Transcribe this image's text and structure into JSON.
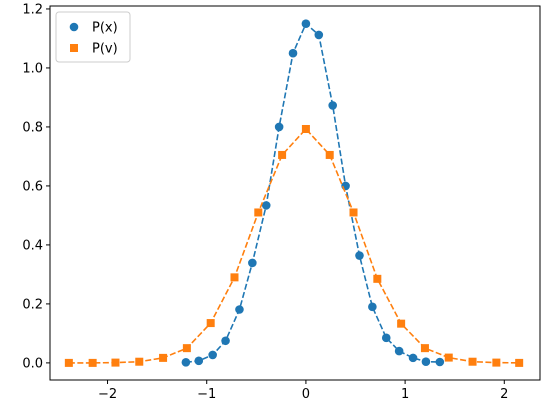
{
  "chart_data": {
    "type": "line",
    "title": "",
    "xlabel": "",
    "ylabel": "",
    "xlim": [
      -2.58,
      2.36
    ],
    "ylim": [
      -0.058,
      1.21
    ],
    "xticks": [
      -2,
      -1,
      0,
      1,
      2
    ],
    "xtick_labels": [
      "−2",
      "−1",
      "0",
      "1",
      "2"
    ],
    "yticks": [
      0.0,
      0.2,
      0.4,
      0.6,
      0.8,
      1.0,
      1.2
    ],
    "ytick_labels": [
      "0.0",
      "0.2",
      "0.4",
      "0.6",
      "0.8",
      "1.0",
      "1.2"
    ],
    "grid": false,
    "legend_position": "top-left",
    "series": [
      {
        "name": "P(x)",
        "color": "#1f77b4",
        "marker": "circle",
        "line_style": "dashed",
        "x": [
          -1.21,
          -1.08,
          -0.94,
          -0.81,
          -0.67,
          -0.54,
          -0.4,
          -0.27,
          -0.13,
          0.0,
          0.13,
          0.27,
          0.4,
          0.54,
          0.67,
          0.81,
          0.94,
          1.08,
          1.21,
          1.35
        ],
        "y": [
          0.002,
          0.007,
          0.027,
          0.075,
          0.181,
          0.339,
          0.534,
          0.8,
          1.05,
          1.15,
          1.112,
          0.873,
          0.6,
          0.364,
          0.19,
          0.085,
          0.04,
          0.017,
          0.004,
          0.003
        ]
      },
      {
        "name": "P(v)",
        "color": "#ff7f0e",
        "marker": "square",
        "line_style": "dashed",
        "x": [
          -2.39,
          -2.15,
          -1.92,
          -1.68,
          -1.44,
          -1.2,
          -0.96,
          -0.72,
          -0.48,
          -0.24,
          0.0,
          0.24,
          0.48,
          0.72,
          0.96,
          1.2,
          1.44,
          1.68,
          1.92,
          2.15
        ],
        "y": [
          0.0,
          0.0,
          0.001,
          0.004,
          0.017,
          0.05,
          0.135,
          0.29,
          0.51,
          0.705,
          0.793,
          0.705,
          0.51,
          0.285,
          0.133,
          0.05,
          0.018,
          0.004,
          0.001,
          0.0
        ]
      }
    ]
  }
}
